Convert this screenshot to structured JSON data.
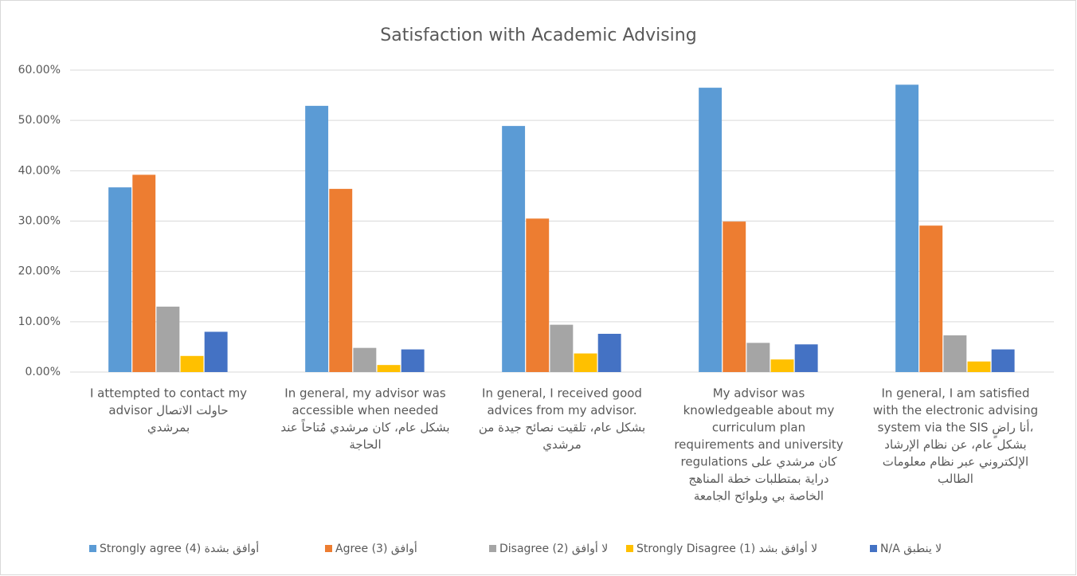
{
  "chart_data": {
    "type": "bar",
    "title": "Satisfaction with Academic Advising",
    "categories": [
      [
        "I attempted to contact my",
        "advisor   حاولت الاتصال",
        "بمرشدي"
      ],
      [
        "In general, my advisor was",
        "accessible when needed",
        "بشكل عام، كان مرشدي مُتاحاً عند",
        "الحاجة"
      ],
      [
        "In general, I received good",
        "advices from my advisor.",
        "بشكل عام، تلقيت نصائح جيدة من",
        "مرشدي"
      ],
      [
        "My advisor was",
        "knowledgeable about my",
        "curriculum plan",
        "requirements and university",
        "regulations   كان مرشدي على",
        "دراية بمتطلبات خطة المناهج",
        "الخاصة بي وبلوائح الجامعة"
      ],
      [
        "In general, I am satisfied",
        "with the electronic advising",
        "system via the SIS    أنا راضٍ،",
        "بشكل عام، عن نظام الإرشاد",
        "الإلكتروني عبر نظام معلومات",
        "الطالب"
      ]
    ],
    "series": [
      {
        "name": "Strongly agree (4)  أوافق بشدة",
        "color": "#5b9bd5",
        "values": [
          36.7,
          52.9,
          48.9,
          56.5,
          57.1
        ]
      },
      {
        "name": "Agree (3)    أوافق",
        "color": "#ed7d31",
        "values": [
          39.2,
          36.4,
          30.5,
          29.9,
          29.1
        ]
      },
      {
        "name": "Disagree (2) لا أوافق",
        "color": "#a5a5a5",
        "values": [
          13.0,
          4.8,
          9.4,
          5.8,
          7.3
        ]
      },
      {
        "name": "Strongly Disagree (1) لا أوافق بشد",
        "color": "#ffc000",
        "values": [
          3.2,
          1.4,
          3.7,
          2.5,
          2.1
        ]
      },
      {
        "name": "N/A  لا ينطبق",
        "color": "#4472c4",
        "values": [
          8.0,
          4.5,
          7.6,
          5.5,
          4.5
        ]
      }
    ],
    "ylim": [
      0,
      60
    ],
    "yticks": [
      {
        "value": 0,
        "label": "0.00%"
      },
      {
        "value": 10,
        "label": "10.00%"
      },
      {
        "value": 20,
        "label": "20.00%"
      },
      {
        "value": 30,
        "label": "30.00%"
      },
      {
        "value": 40,
        "label": "40.00%"
      },
      {
        "value": 50,
        "label": "50.00%"
      },
      {
        "value": 60,
        "label": "60.00%"
      }
    ],
    "grid": true,
    "legend": "bottom"
  }
}
